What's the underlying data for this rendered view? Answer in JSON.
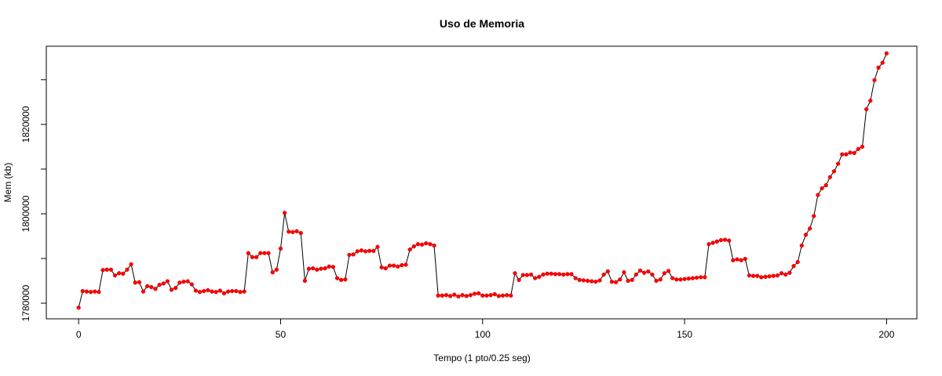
{
  "chart_data": {
    "type": "line",
    "title": "Uso de Memoria",
    "xlabel": "Tempo (1 pto/0.25 seg)",
    "ylabel": "Mem (kb)",
    "xlim": [
      -8,
      207.5
    ],
    "ylim": [
      1776500,
      1837500
    ],
    "xticks": [
      0,
      50,
      100,
      150,
      200
    ],
    "yticks": [
      1780000,
      1790000,
      1800000,
      1810000,
      1820000,
      1830000
    ],
    "ytick_labels": [
      "1780000",
      "",
      "1800000",
      "",
      "1820000",
      ""
    ],
    "grid": false,
    "colors": {
      "points": "#ff0000",
      "line": "#000000"
    },
    "series": [
      {
        "values": [
          1779000,
          1782700,
          1782600,
          1782500,
          1782600,
          1782500,
          1787400,
          1787500,
          1787500,
          1786200,
          1786700,
          1786600,
          1787500,
          1788700,
          1784600,
          1784700,
          1782600,
          1783800,
          1783600,
          1783200,
          1784100,
          1784400,
          1784900,
          1783000,
          1783400,
          1784600,
          1784800,
          1784900,
          1784200,
          1782800,
          1782500,
          1782700,
          1782900,
          1782600,
          1782500,
          1782800,
          1782200,
          1782600,
          1782700,
          1782700,
          1782500,
          1782600,
          1791200,
          1790300,
          1790300,
          1791200,
          1791200,
          1791200,
          1786900,
          1787500,
          1792200,
          1800200,
          1796000,
          1795900,
          1796100,
          1795700,
          1785000,
          1787700,
          1787800,
          1787500,
          1787700,
          1787800,
          1788200,
          1788100,
          1785600,
          1785200,
          1785300,
          1790800,
          1790900,
          1791600,
          1791800,
          1791600,
          1791700,
          1791700,
          1792600,
          1788000,
          1787800,
          1788400,
          1788400,
          1788200,
          1788500,
          1788600,
          1792000,
          1792700,
          1793200,
          1793100,
          1793400,
          1793200,
          1792900,
          1781700,
          1781700,
          1781800,
          1781600,
          1781900,
          1781500,
          1781800,
          1781600,
          1781800,
          1782100,
          1782200,
          1781700,
          1781700,
          1781800,
          1782000,
          1781600,
          1781700,
          1781800,
          1781700,
          1786700,
          1785200,
          1786300,
          1786300,
          1786400,
          1785600,
          1785900,
          1786400,
          1786600,
          1786600,
          1786500,
          1786500,
          1786400,
          1786500,
          1786500,
          1785600,
          1785200,
          1785100,
          1785000,
          1784900,
          1784800,
          1785100,
          1786400,
          1787100,
          1784800,
          1784700,
          1785300,
          1786900,
          1785000,
          1785200,
          1786400,
          1787300,
          1786800,
          1787100,
          1786400,
          1785000,
          1785300,
          1786700,
          1787200,
          1785600,
          1785300,
          1785300,
          1785400,
          1785500,
          1785600,
          1785700,
          1785800,
          1785800,
          1793200,
          1793500,
          1793800,
          1794100,
          1794200,
          1794000,
          1789600,
          1789800,
          1789600,
          1789900,
          1786200,
          1786100,
          1786100,
          1785800,
          1785900,
          1786000,
          1786100,
          1786200,
          1786700,
          1786400,
          1786800,
          1788300,
          1789200,
          1792900,
          1795300,
          1796700,
          1799500,
          1804200,
          1805700,
          1806400,
          1808200,
          1809500,
          1811200,
          1813300,
          1813300,
          1813700,
          1813600,
          1814500,
          1815000,
          1823400,
          1825300,
          1829900,
          1832700,
          1833800,
          1835900
        ]
      }
    ]
  }
}
